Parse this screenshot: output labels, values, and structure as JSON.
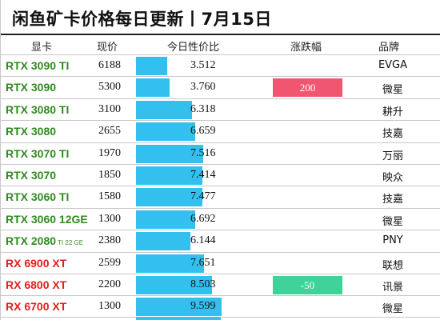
{
  "title": "闲鱼矿卡价格每日更新丨7月15日",
  "headers": {
    "card": "显卡",
    "price": "现价",
    "ratio": "今日性价比",
    "change": "涨跌幅",
    "brand": "品牌"
  },
  "colors": {
    "nvidia_text": "#2f8a1f",
    "amd_text": "#e0201b",
    "bar": "#33c0ee",
    "change_up": "#f15670",
    "change_down": "#3fd39a"
  },
  "rows": [
    {
      "card": "RTX 3090 TI",
      "sub": "",
      "vendor": "nvidia",
      "price": "6188",
      "ratio": "3.512",
      "bar_fraction": 0.35,
      "change": "",
      "change_dir": "",
      "brand": "EVGA"
    },
    {
      "card": "RTX 3090",
      "sub": "",
      "vendor": "nvidia",
      "price": "5300",
      "ratio": "3.760",
      "bar_fraction": 0.38,
      "change": "200",
      "change_dir": "up",
      "brand": "微星"
    },
    {
      "card": "RTX 3080 TI",
      "sub": "",
      "vendor": "nvidia",
      "price": "3100",
      "ratio": "6.318",
      "bar_fraction": 0.64,
      "change": "",
      "change_dir": "",
      "brand": "耕升"
    },
    {
      "card": "RTX 3080",
      "sub": "",
      "vendor": "nvidia",
      "price": "2655",
      "ratio": "6.659",
      "bar_fraction": 0.67,
      "change": "",
      "change_dir": "",
      "brand": "技嘉"
    },
    {
      "card": "RTX 3070 TI",
      "sub": "",
      "vendor": "nvidia",
      "price": "1970",
      "ratio": "7.516",
      "bar_fraction": 0.76,
      "change": "",
      "change_dir": "",
      "brand": "万丽"
    },
    {
      "card": "RTX 3070",
      "sub": "",
      "vendor": "nvidia",
      "price": "1850",
      "ratio": "7.414",
      "bar_fraction": 0.75,
      "change": "",
      "change_dir": "",
      "brand": "映众"
    },
    {
      "card": "RTX 3060 TI",
      "sub": "",
      "vendor": "nvidia",
      "price": "1580",
      "ratio": "7.477",
      "bar_fraction": 0.755,
      "change": "",
      "change_dir": "",
      "brand": "技嘉"
    },
    {
      "card": "RTX 3060 12GE",
      "sub": "",
      "vendor": "nvidia",
      "price": "1300",
      "ratio": "6.692",
      "bar_fraction": 0.675,
      "change": "",
      "change_dir": "",
      "brand": "微星"
    },
    {
      "card": "RTX 2080",
      "sub": "TI 22 GE",
      "vendor": "nvidia",
      "price": "2380",
      "ratio": "6.144",
      "bar_fraction": 0.62,
      "change": "",
      "change_dir": "",
      "brand": "PNY"
    },
    {
      "card": "RX 6900 XT",
      "sub": "",
      "vendor": "amd",
      "price": "2599",
      "ratio": "7.651",
      "bar_fraction": 0.77,
      "change": "",
      "change_dir": "",
      "brand": "联想"
    },
    {
      "card": "RX 6800 XT",
      "sub": "",
      "vendor": "amd",
      "price": "2200",
      "ratio": "8.503",
      "bar_fraction": 0.86,
      "change": "-50",
      "change_dir": "down",
      "brand": "讯景"
    },
    {
      "card": "RX 6700 XT",
      "sub": "",
      "vendor": "amd",
      "price": "1300",
      "ratio": "9.599",
      "bar_fraction": 0.97,
      "change": "",
      "change_dir": "",
      "brand": "微星"
    }
  ]
}
